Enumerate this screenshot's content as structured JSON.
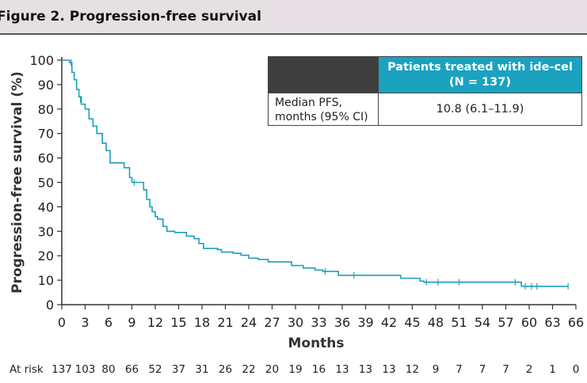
{
  "header": {
    "title": "Figure 2. Progression-free survival"
  },
  "colors": {
    "curve": "#1e9ebb",
    "header_bg": "#e6dfe4",
    "legend_header_bg": "#1aa2bf",
    "legend_dark": "#3f3f3f"
  },
  "legend": {
    "column_header": "Patients treated with ide-cel\n(N = 137)",
    "row_label": "Median PFS,\nmonths (95% CI)",
    "row_value": "10.8 (6.1–11.9)"
  },
  "chart_data": {
    "type": "line",
    "title": "",
    "xlabel": "Months",
    "ylabel": "Progression-free survival (%)",
    "xlim": [
      0,
      66
    ],
    "ylim": [
      0,
      100
    ],
    "x_ticks": [
      0,
      3,
      6,
      9,
      12,
      15,
      18,
      21,
      24,
      27,
      30,
      33,
      36,
      39,
      42,
      45,
      48,
      51,
      54,
      57,
      60,
      63,
      66
    ],
    "y_ticks": [
      0,
      10,
      20,
      30,
      40,
      50,
      60,
      70,
      80,
      90,
      100
    ],
    "series": [
      {
        "curve_type": "step",
        "x": [
          0,
          1.0,
          1.3,
          1.6,
          1.9,
          2.2,
          2.5,
          3.0,
          3.5,
          4.0,
          4.5,
          5.2,
          5.7,
          6.2,
          8.0,
          8.7,
          9.0,
          10.5,
          10.9,
          11.3,
          11.6,
          12.0,
          12.3,
          13.0,
          13.5,
          14.5,
          16.0,
          17.0,
          17.6,
          18.2,
          20.0,
          20.5,
          22.0,
          23.0,
          24.0,
          25.2,
          26.5,
          29.5,
          31.0,
          32.5,
          33.5,
          35.5,
          43.5,
          46.0,
          46.5,
          58.5,
          59.0,
          65.0
        ],
        "y": [
          100,
          99,
          95,
          92,
          88,
          85,
          82,
          80,
          76,
          73,
          70,
          66,
          63,
          58,
          56,
          52,
          50,
          47,
          43,
          40,
          38,
          36,
          35,
          32,
          30,
          29.5,
          28,
          27,
          25,
          23,
          22.5,
          21.5,
          21,
          20.2,
          19,
          18.5,
          17.5,
          16,
          15,
          14.2,
          13.6,
          12,
          10.8,
          9.6,
          9.2,
          9.2,
          7.5,
          7.5
        ],
        "censor_x": [
          1.2,
          2.4,
          9.3,
          33.8,
          37.5,
          46.8,
          48.3,
          51.0,
          58.2,
          59.5,
          60.3,
          61.0,
          65.0
        ],
        "censor_y": [
          99,
          84,
          50,
          13.6,
          12,
          9.2,
          9.2,
          9.2,
          9.2,
          7.5,
          7.5,
          7.5,
          7.5
        ]
      }
    ],
    "at_risk": {
      "label": "At risk",
      "times": [
        0,
        3,
        6,
        9,
        12,
        15,
        18,
        21,
        24,
        27,
        30,
        33,
        36,
        39,
        42,
        45,
        48,
        51,
        54,
        57,
        60,
        63,
        66
      ],
      "counts": [
        "137",
        "103",
        "80",
        "66",
        "52",
        "37",
        "31",
        "26",
        "22",
        "20",
        "19",
        "16",
        "13",
        "13",
        "13",
        "12",
        "9",
        "7",
        "7",
        "7",
        "2",
        "1",
        "0"
      ]
    }
  }
}
